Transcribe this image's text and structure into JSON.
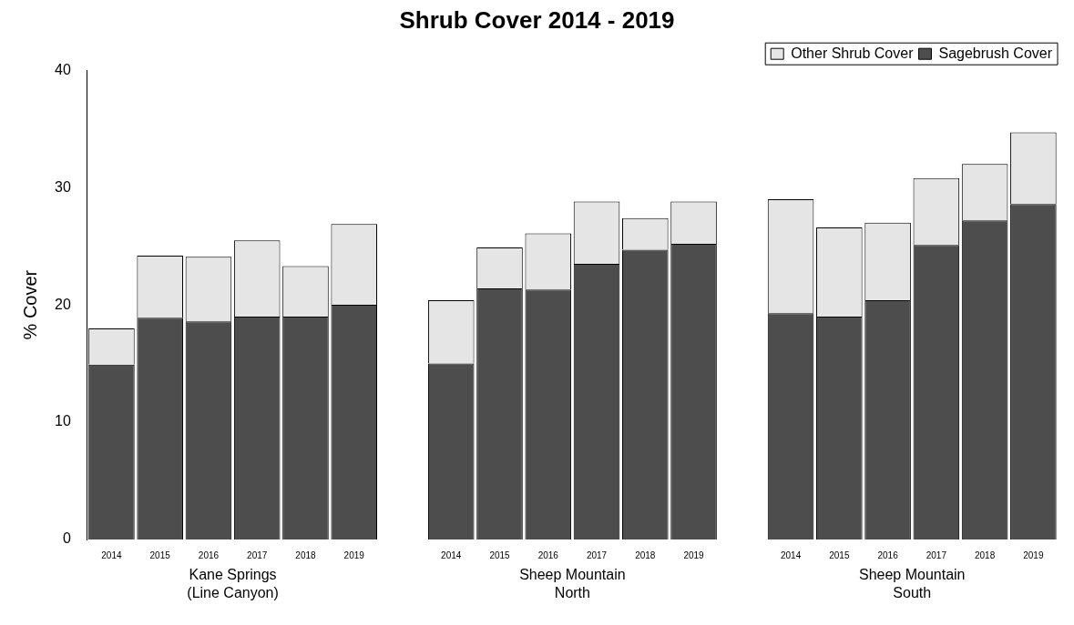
{
  "chart_data": {
    "type": "bar",
    "title": "Shrub Cover 2014 - 2019",
    "ylabel": "% Cover",
    "categories": [
      "2014",
      "2015",
      "2016",
      "2017",
      "2018",
      "2019",
      null,
      "2014",
      "2015",
      "2016",
      "2017",
      "2018",
      "2019",
      null,
      "2014",
      "2015",
      "2016",
      "2017",
      "2018",
      "2019"
    ],
    "series": [
      {
        "name": "Sagebrush Cover",
        "color": "#4d4d4d",
        "values": [
          14.9,
          18.9,
          18.6,
          19.0,
          19.0,
          20.0,
          null,
          15.0,
          21.4,
          21.3,
          23.5,
          24.7,
          25.2,
          null,
          19.3,
          19.0,
          20.4,
          25.1,
          27.2,
          28.6
        ]
      },
      {
        "name": "Other Shrub Cover",
        "color": "#e5e5e5",
        "values": [
          3.1,
          5.3,
          5.5,
          6.5,
          4.3,
          6.9,
          null,
          5.4,
          3.5,
          4.8,
          5.3,
          2.7,
          3.6,
          null,
          9.7,
          7.6,
          6.6,
          5.7,
          4.8,
          6.1
        ]
      }
    ],
    "stacked": true,
    "ylim": [
      0,
      40
    ],
    "yticks": [
      0,
      10,
      20,
      30,
      40
    ],
    "grid": false,
    "legend": "top right",
    "annotations": [
      "Kane Springs\n(Line Canyon)",
      "Sheep Mountain\nNorth",
      "Sheep Mountain\nSouth"
    ]
  }
}
